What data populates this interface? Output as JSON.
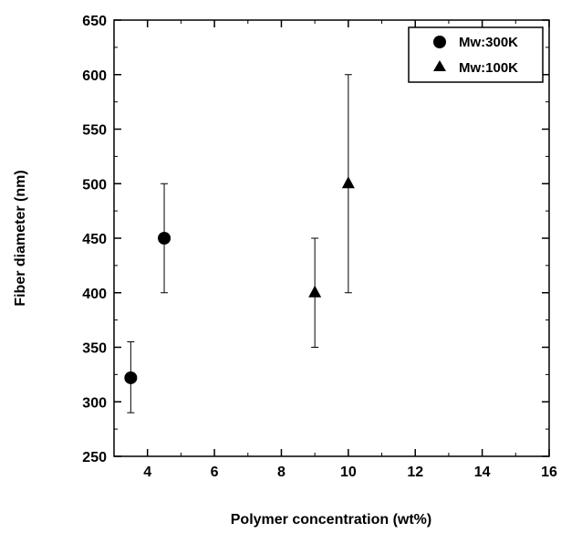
{
  "chart_data": {
    "type": "scatter",
    "title": "",
    "xlabel": "Polymer concentration   (wt%)",
    "ylabel": "Fiber diameter   (nm)",
    "xlim": [
      3,
      16
    ],
    "ylim": [
      250,
      650
    ],
    "xticks": [
      4,
      6,
      8,
      10,
      12,
      14,
      16
    ],
    "yticks": [
      250,
      300,
      350,
      400,
      450,
      500,
      550,
      600,
      650
    ],
    "legend_position": "top-right",
    "grid": false,
    "series": [
      {
        "name": "Mw:300K",
        "marker": "circle",
        "points": [
          {
            "x": 3.5,
            "y": 322,
            "err_low": 290,
            "err_high": 355
          },
          {
            "x": 4.5,
            "y": 450,
            "err_low": 400,
            "err_high": 500
          }
        ]
      },
      {
        "name": "Mw:100K",
        "marker": "triangle",
        "points": [
          {
            "x": 9,
            "y": 400,
            "err_low": 350,
            "err_high": 450
          },
          {
            "x": 10,
            "y": 500,
            "err_low": 400,
            "err_high": 600
          }
        ]
      }
    ]
  }
}
